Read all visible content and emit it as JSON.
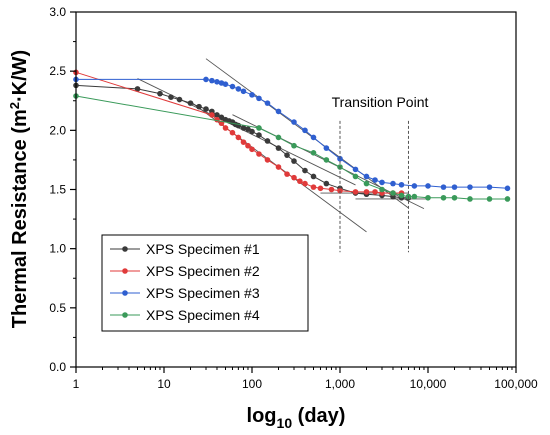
{
  "chart_data": {
    "type": "scatter",
    "xlabel": "log",
    "xlabel_sub": "10",
    "xlabel_tail": " (day)",
    "ylabel": "Thermal Resistance (m",
    "ylabel_sup": "2",
    "ylabel_tail": "·K/W)",
    "x_scale": "log",
    "xlim": [
      1,
      100000
    ],
    "ylim": [
      0.0,
      3.0
    ],
    "x_ticks": [
      1,
      10,
      100,
      1000,
      10000,
      100000
    ],
    "x_tick_labels": [
      "1",
      "10",
      "100",
      "1,000",
      "10,000",
      "100,000"
    ],
    "y_ticks": [
      0.0,
      0.5,
      1.0,
      1.5,
      2.0,
      2.5,
      3.0
    ],
    "y_tick_labels": [
      "0.0",
      "0.5",
      "1.0",
      "1.5",
      "2.0",
      "2.5",
      "3.0"
    ],
    "grid": false,
    "legend_position": "lower-left",
    "annotation": "Transition Point",
    "transition_x": [
      1000,
      6000
    ],
    "series": [
      {
        "name": "XPS Specimen #1",
        "color": "#3a3a3a",
        "x": [
          1,
          5,
          9,
          12,
          15,
          20,
          25,
          30,
          35,
          40,
          45,
          50,
          55,
          60,
          65,
          70,
          80,
          90,
          100,
          120,
          150,
          200,
          250,
          300,
          400,
          500,
          700,
          1000,
          1500,
          2000,
          3000,
          4000,
          5000,
          6000
        ],
        "y": [
          2.38,
          2.35,
          2.31,
          2.28,
          2.26,
          2.23,
          2.2,
          2.18,
          2.16,
          2.13,
          2.11,
          2.09,
          2.08,
          2.07,
          2.05,
          2.04,
          2.02,
          2.01,
          1.99,
          1.96,
          1.91,
          1.85,
          1.79,
          1.74,
          1.66,
          1.61,
          1.55,
          1.51,
          1.47,
          1.46,
          1.45,
          1.44,
          1.43,
          1.43
        ]
      },
      {
        "name": "XPS Specimen #2",
        "color": "#e03a3a",
        "x": [
          1,
          35,
          40,
          45,
          50,
          60,
          70,
          80,
          90,
          100,
          120,
          150,
          200,
          250,
          300,
          350,
          400,
          500,
          600,
          800,
          1000,
          1500,
          2000,
          2500,
          3000,
          4000,
          5000
        ],
        "y": [
          2.49,
          2.13,
          2.09,
          2.06,
          2.02,
          1.98,
          1.94,
          1.9,
          1.87,
          1.84,
          1.8,
          1.75,
          1.69,
          1.63,
          1.6,
          1.57,
          1.55,
          1.52,
          1.51,
          1.5,
          1.49,
          1.48,
          1.48,
          1.48,
          1.47,
          1.47,
          1.47
        ]
      },
      {
        "name": "XPS Specimen #3",
        "color": "#2f5fd0",
        "x": [
          1,
          30,
          35,
          40,
          45,
          50,
          60,
          70,
          80,
          100,
          120,
          150,
          200,
          300,
          400,
          500,
          700,
          1000,
          1500,
          2000,
          2500,
          3000,
          4000,
          5000,
          7000,
          10000,
          15000,
          20000,
          30000,
          50000,
          80000
        ],
        "y": [
          2.43,
          2.43,
          2.42,
          2.41,
          2.4,
          2.39,
          2.37,
          2.35,
          2.33,
          2.3,
          2.27,
          2.23,
          2.16,
          2.07,
          2.0,
          1.94,
          1.85,
          1.76,
          1.67,
          1.61,
          1.58,
          1.56,
          1.55,
          1.54,
          1.53,
          1.53,
          1.52,
          1.52,
          1.52,
          1.52,
          1.51
        ]
      },
      {
        "name": "XPS Specimen #4",
        "color": "#3a9a5a",
        "x": [
          1,
          120,
          200,
          300,
          500,
          700,
          1000,
          1500,
          2000,
          3000,
          4000,
          5000,
          6000,
          7000,
          10000,
          15000,
          20000,
          30000,
          50000,
          80000
        ],
        "y": [
          2.29,
          2.02,
          1.94,
          1.87,
          1.81,
          1.75,
          1.69,
          1.61,
          1.55,
          1.5,
          1.47,
          1.45,
          1.44,
          1.44,
          1.43,
          1.43,
          1.43,
          1.42,
          1.42,
          1.42
        ]
      }
    ]
  }
}
